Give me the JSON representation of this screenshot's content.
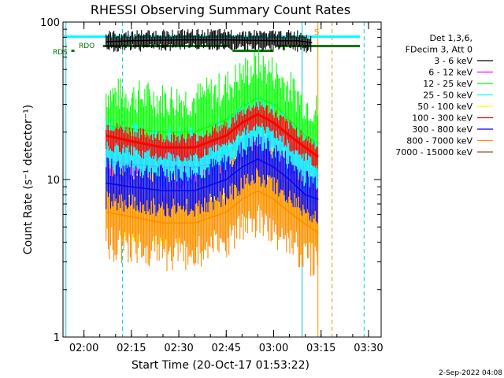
{
  "chart_data": {
    "type": "line",
    "title": "RHESSI Observing Summary Count Rates",
    "xlabel": "Start Time (20-Oct-17 01:53:22)",
    "ylabel": "Count Rate (s⁻¹ detector⁻¹)",
    "y_scale": "log",
    "ylim": [
      1,
      100
    ],
    "xlim": [
      "01:53:22",
      "03:34:00"
    ],
    "x_ticks": [
      "02:00",
      "02:15",
      "02:30",
      "02:45",
      "03:00",
      "03:15",
      "03:30"
    ],
    "y_ticks": [
      "1",
      "10",
      "100"
    ],
    "legend_header": [
      "Det 1,3,6,",
      "FDecim 3, Att 0"
    ],
    "legend_position": "right",
    "series": [
      {
        "name": "3 - 6 keV",
        "color": "#000000",
        "x": [
          "02:07",
          "02:15",
          "02:30",
          "02:45",
          "03:00",
          "03:08",
          "03:12"
        ],
        "y": [
          75,
          76,
          77,
          77,
          76,
          76,
          74
        ]
      },
      {
        "name": "6 - 12 keV",
        "color": "#ff00ff",
        "x": [
          "02:07",
          "02:15",
          "02:25",
          "02:35",
          "02:45",
          "02:50",
          "02:55",
          "03:00",
          "03:05",
          "03:10",
          "03:14"
        ],
        "y": [
          13,
          12.5,
          12,
          12,
          13,
          15,
          16,
          15,
          13,
          11,
          10
        ]
      },
      {
        "name": "12 - 25 keV",
        "color": "#00ff00",
        "x": [
          "02:07",
          "02:15",
          "02:25",
          "02:35",
          "02:45",
          "02:50",
          "02:55",
          "03:00",
          "03:05",
          "03:10",
          "03:14"
        ],
        "y": [
          22,
          21,
          20,
          20,
          24,
          29,
          33,
          30,
          24,
          19,
          17
        ]
      },
      {
        "name": "25 - 50 keV",
        "color": "#00ffff",
        "x": [
          "02:07",
          "02:15",
          "02:25",
          "02:35",
          "02:45",
          "02:50",
          "02:55",
          "03:00",
          "03:05",
          "03:10",
          "03:14"
        ],
        "y": [
          15,
          14,
          13,
          13,
          15,
          18,
          21,
          19,
          15,
          12,
          11
        ]
      },
      {
        "name": "50 - 100 keV",
        "color": "#ffff00",
        "x": [
          "02:07",
          "02:15",
          "02:25",
          "02:35",
          "02:45",
          "02:50",
          "02:55",
          "03:00",
          "03:05",
          "03:10",
          "03:14"
        ],
        "y": [
          7.5,
          7,
          6.5,
          6.5,
          8,
          9.5,
          10.5,
          9.5,
          8,
          6.5,
          6
        ]
      },
      {
        "name": "100 - 300 keV",
        "color": "#ff0000",
        "x": [
          "02:07",
          "02:15",
          "02:25",
          "02:35",
          "02:45",
          "02:50",
          "02:55",
          "03:00",
          "03:05",
          "03:10",
          "03:14"
        ],
        "y": [
          19,
          17.5,
          16,
          16,
          19,
          23,
          26,
          23,
          19,
          16,
          14
        ]
      },
      {
        "name": "300 - 800 keV",
        "color": "#0000ff",
        "x": [
          "02:07",
          "02:15",
          "02:25",
          "02:35",
          "02:45",
          "02:50",
          "02:55",
          "03:00",
          "03:05",
          "03:10",
          "03:14"
        ],
        "y": [
          9.5,
          9,
          8.5,
          8.5,
          10,
          12,
          13.5,
          12,
          10,
          8,
          7.5
        ]
      },
      {
        "name": "800 - 7000 keV",
        "color": "#ff8c00",
        "x": [
          "02:07",
          "02:15",
          "02:25",
          "02:35",
          "02:45",
          "02:50",
          "02:55",
          "03:00",
          "03:05",
          "03:10",
          "03:14"
        ],
        "y": [
          6.2,
          5.8,
          5.3,
          5.3,
          6.2,
          7.5,
          8.5,
          7.5,
          6.2,
          5.2,
          4.6
        ]
      },
      {
        "name": "7000 - 15000 keV",
        "color": "#a0522d",
        "x": [],
        "y": []
      }
    ],
    "annotations": [
      {
        "label": "RDS",
        "color": "#007700"
      },
      {
        "label": "RDO",
        "color": "#007700"
      },
      {
        "label": "S",
        "color": "#ff8c00"
      }
    ],
    "footer_date": "2-Sep-2022 04:08"
  }
}
